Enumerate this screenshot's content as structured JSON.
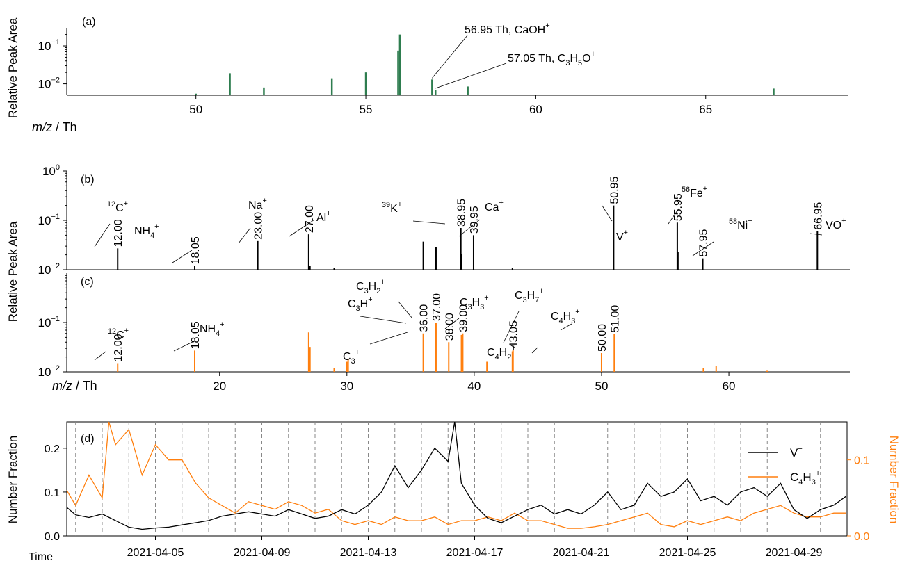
{
  "chart_data": [
    {
      "panel": "(a)",
      "type": "bar",
      "ylabel": "Relative Peak Area",
      "xlabel_var": "m/z",
      "xlabel_unit": " / Th",
      "xlim": [
        46.2,
        69.2
      ],
      "ylim": [
        0.005,
        0.3
      ],
      "yscale": "log",
      "xticks": [
        50,
        55,
        60,
        65
      ],
      "yticks": [
        {
          "base": "10",
          "exp": "−1",
          "value": 0.1
        },
        {
          "base": "10",
          "exp": "−2",
          "value": 0.01
        }
      ],
      "color": "#2e7d4f",
      "x": [
        50.0,
        51.0,
        52.0,
        54.0,
        55.0,
        55.95,
        56.0,
        56.95,
        57.05,
        58.0,
        67.0
      ],
      "values": [
        0.0055,
        0.019,
        0.008,
        0.014,
        0.02,
        0.075,
        0.2,
        0.013,
        0.007,
        0.0085,
        0.0075
      ],
      "annotations": [
        {
          "x": 56.95,
          "base": "56.95 Th, CaOH",
          "sup": "+"
        },
        {
          "x": 57.05,
          "base": "57.05 Th, C",
          "sub1": "3",
          "mid": "H",
          "sub2": "5",
          "end": "O",
          "sup": "+"
        }
      ]
    },
    {
      "panel": "(b)",
      "type": "bar",
      "ylabel": "Relative Peak Area",
      "xlim": [
        8.0,
        69.5
      ],
      "ylim": [
        0.01,
        1
      ],
      "yscale": "log",
      "yticks": [
        {
          "base": "10",
          "exp": "0",
          "value": 1
        },
        {
          "base": "10",
          "exp": "−1",
          "value": 0.1
        },
        {
          "base": "10",
          "exp": "−2",
          "value": 0.01
        }
      ],
      "color": "#000000",
      "x": [
        12.0,
        18.05,
        23.0,
        27.0,
        27.1,
        29.0,
        36.0,
        37.0,
        38.95,
        39.0,
        39.95,
        43.0,
        50.95,
        55.95,
        56.0,
        57.95,
        66.95
      ],
      "values": [
        0.027,
        0.012,
        0.038,
        0.052,
        0.012,
        0.011,
        0.037,
        0.029,
        0.07,
        0.021,
        0.05,
        0.011,
        0.2,
        0.09,
        0.023,
        0.017,
        0.06
      ],
      "peak_labels": [
        "12.00",
        "18.05",
        "23.00",
        "27.00",
        "38.95",
        "39.95",
        "50.95",
        "55.95",
        "57.95",
        "66.95"
      ],
      "ions": [
        {
          "pre": "12",
          "text": "C",
          "sup": "+"
        },
        {
          "text": "NH",
          "sub": "4",
          "sup": "+"
        },
        {
          "text": "Na",
          "sup": "+"
        },
        {
          "text": "Al",
          "sup": "+"
        },
        {
          "pre": "39",
          "text": "K",
          "sup": "+"
        },
        {
          "text": "Ca",
          "sup": "+"
        },
        {
          "text": "V",
          "sup": "+"
        },
        {
          "pre": "56",
          "text": "Fe",
          "sup": "+"
        },
        {
          "pre": "58",
          "text": "Ni",
          "sup": "+"
        },
        {
          "text": "VO",
          "sup": "+"
        }
      ]
    },
    {
      "panel": "(c)",
      "type": "bar",
      "ylabel": "Relative Peak Area",
      "xlabel_var": "m/z",
      "xlabel_unit": " / Th",
      "xlim": [
        8.0,
        69.5
      ],
      "ylim": [
        0.01,
        1
      ],
      "yscale": "log",
      "xticks": [
        20,
        30,
        40,
        50,
        60
      ],
      "yticks": [
        {
          "base": "10",
          "exp": "−1",
          "value": 0.1
        },
        {
          "base": "10",
          "exp": "−2",
          "value": 0.01
        }
      ],
      "color": "#ff7f0e",
      "x": [
        12.0,
        18.05,
        27.0,
        27.1,
        29.0,
        30.0,
        30.1,
        36.0,
        37.0,
        38.0,
        39.0,
        39.1,
        41.0,
        43.0,
        43.05,
        50.0,
        51.0,
        58.0,
        59.0,
        63.0
      ],
      "values": [
        0.015,
        0.027,
        0.063,
        0.032,
        0.012,
        0.016,
        0.018,
        0.06,
        0.1,
        0.04,
        0.056,
        0.06,
        0.016,
        0.026,
        0.028,
        0.024,
        0.058,
        0.012,
        0.013,
        0.0105
      ],
      "peak_labels": [
        "12.00",
        "18.05",
        "36.00",
        "37.00",
        "38.00",
        "39.00",
        "43.05",
        "50.00",
        "51.00"
      ],
      "ions": [
        {
          "pre": "12",
          "text": "C",
          "sup": "+"
        },
        {
          "text": "NH",
          "sub": "4",
          "sup": "+"
        },
        {
          "text": "C",
          "sub": "3",
          "sup": "+"
        },
        {
          "text": "C",
          "sub": "3",
          "sup": "+",
          "tail": "H"
        },
        {
          "text": "C",
          "sub": "3",
          "text2": "H",
          "sub2": "2",
          "sup": "+"
        },
        {
          "text": "C",
          "sub": "3",
          "text2": "H",
          "sub2": "3",
          "sup": "+"
        },
        {
          "text": "C",
          "sub": "3",
          "text2": "H",
          "sub2": "7",
          "sup": "+"
        },
        {
          "text": "C",
          "sub": "4",
          "text2": "H",
          "sub2": "2",
          "sup": "+"
        },
        {
          "text": "C",
          "sub": "4",
          "text2": "H",
          "sub2": "3",
          "sup": "+"
        }
      ]
    },
    {
      "panel": "(d)",
      "type": "line",
      "xlabel": "Time",
      "ylabel": "Number Fraction",
      "ylabel_right": "Number Fraction",
      "xlim": [
        "2021-04-02",
        "2021-05-01"
      ],
      "ylim": [
        0,
        0.26
      ],
      "ylim_right": [
        0,
        0.15
      ],
      "yticks": [
        "0.0",
        "0.1",
        "0.2"
      ],
      "yticks_right": [
        "0.0",
        "0.1"
      ],
      "xticks": [
        "2021-04-05",
        "2021-04-09",
        "2021-04-13",
        "2021-04-17",
        "2021-04-21",
        "2021-04-25",
        "2021-04-29"
      ],
      "day_lines": [
        "2021-04-02",
        "2021-04-03",
        "2021-04-04",
        "2021-04-05",
        "2021-04-06",
        "2021-04-07",
        "2021-04-08",
        "2021-04-09",
        "2021-04-10",
        "2021-04-11",
        "2021-04-12",
        "2021-04-13",
        "2021-04-14",
        "2021-04-15",
        "2021-04-16",
        "2021-04-17",
        "2021-04-18",
        "2021-04-19",
        "2021-04-20",
        "2021-04-21",
        "2021-04-22",
        "2021-04-23",
        "2021-04-24",
        "2021-04-25",
        "2021-04-26",
        "2021-04-27",
        "2021-04-28",
        "2021-04-29",
        "2021-04-30"
      ],
      "series": [
        {
          "name": "V",
          "name_sup": "+",
          "axis": "left",
          "color": "#000000",
          "x": [
            "2021-04-01T16:00",
            "2021-04-02T00:00",
            "2021-04-02T12:00",
            "2021-04-03T00:00",
            "2021-04-03T12:00",
            "2021-04-04T00:00",
            "2021-04-04T12:00",
            "2021-04-05T00:00",
            "2021-04-05T12:00",
            "2021-04-06T00:00",
            "2021-04-06T12:00",
            "2021-04-07T00:00",
            "2021-04-07T12:00",
            "2021-04-08T00:00",
            "2021-04-08T12:00",
            "2021-04-09T00:00",
            "2021-04-09T12:00",
            "2021-04-10T00:00",
            "2021-04-10T12:00",
            "2021-04-11T00:00",
            "2021-04-11T12:00",
            "2021-04-12T00:00",
            "2021-04-12T12:00",
            "2021-04-13T00:00",
            "2021-04-13T12:00",
            "2021-04-14T00:00",
            "2021-04-14T12:00",
            "2021-04-15T00:00",
            "2021-04-15T12:00",
            "2021-04-16T00:00",
            "2021-04-16T06:00",
            "2021-04-16T12:00",
            "2021-04-17T00:00",
            "2021-04-17T12:00",
            "2021-04-18T00:00",
            "2021-04-18T12:00",
            "2021-04-19T00:00",
            "2021-04-19T12:00",
            "2021-04-20T00:00",
            "2021-04-20T12:00",
            "2021-04-21T00:00",
            "2021-04-21T12:00",
            "2021-04-22T00:00",
            "2021-04-22T12:00",
            "2021-04-23T00:00",
            "2021-04-23T12:00",
            "2021-04-24T00:00",
            "2021-04-24T12:00",
            "2021-04-25T00:00",
            "2021-04-25T12:00",
            "2021-04-26T00:00",
            "2021-04-26T12:00",
            "2021-04-27T00:00",
            "2021-04-27T12:00",
            "2021-04-28T00:00",
            "2021-04-28T12:00",
            "2021-04-29T00:00",
            "2021-04-29T12:00",
            "2021-04-30T00:00",
            "2021-04-30T12:00",
            "2021-04-30T23:00"
          ],
          "values": [
            0.065,
            0.048,
            0.042,
            0.05,
            0.035,
            0.02,
            0.015,
            0.018,
            0.02,
            0.025,
            0.03,
            0.035,
            0.045,
            0.05,
            0.055,
            0.05,
            0.045,
            0.06,
            0.05,
            0.04,
            0.045,
            0.06,
            0.05,
            0.07,
            0.1,
            0.16,
            0.11,
            0.15,
            0.2,
            0.17,
            0.26,
            0.12,
            0.07,
            0.04,
            0.03,
            0.045,
            0.06,
            0.07,
            0.05,
            0.06,
            0.05,
            0.07,
            0.1,
            0.06,
            0.07,
            0.12,
            0.09,
            0.1,
            0.13,
            0.08,
            0.09,
            0.07,
            0.1,
            0.11,
            0.09,
            0.12,
            0.06,
            0.04,
            0.06,
            0.07,
            0.09
          ]
        },
        {
          "name": "C",
          "name_sub": "4",
          "name_mid": "H",
          "name_sub2": "3",
          "name_sup": "+",
          "axis": "right",
          "color": "#ff7f0e",
          "x": [
            "2021-04-01T16:00",
            "2021-04-02T00:00",
            "2021-04-02T12:00",
            "2021-04-03T00:00",
            "2021-04-03T06:00",
            "2021-04-03T12:00",
            "2021-04-04T00:00",
            "2021-04-04T12:00",
            "2021-04-05T00:00",
            "2021-04-05T12:00",
            "2021-04-06T00:00",
            "2021-04-06T12:00",
            "2021-04-07T00:00",
            "2021-04-07T12:00",
            "2021-04-08T00:00",
            "2021-04-08T12:00",
            "2021-04-09T00:00",
            "2021-04-09T12:00",
            "2021-04-10T00:00",
            "2021-04-10T12:00",
            "2021-04-11T00:00",
            "2021-04-11T12:00",
            "2021-04-12T00:00",
            "2021-04-12T12:00",
            "2021-04-13T00:00",
            "2021-04-13T12:00",
            "2021-04-14T00:00",
            "2021-04-14T12:00",
            "2021-04-15T00:00",
            "2021-04-15T12:00",
            "2021-04-16T00:00",
            "2021-04-16T12:00",
            "2021-04-17T00:00",
            "2021-04-17T12:00",
            "2021-04-18T00:00",
            "2021-04-18T12:00",
            "2021-04-19T00:00",
            "2021-04-19T12:00",
            "2021-04-20T00:00",
            "2021-04-20T12:00",
            "2021-04-21T00:00",
            "2021-04-21T12:00",
            "2021-04-22T00:00",
            "2021-04-22T12:00",
            "2021-04-23T00:00",
            "2021-04-23T12:00",
            "2021-04-24T00:00",
            "2021-04-24T12:00",
            "2021-04-25T00:00",
            "2021-04-25T12:00",
            "2021-04-26T00:00",
            "2021-04-26T12:00",
            "2021-04-27T00:00",
            "2021-04-27T12:00",
            "2021-04-28T00:00",
            "2021-04-28T12:00",
            "2021-04-29T00:00",
            "2021-04-29T12:00",
            "2021-04-30T00:00",
            "2021-04-30T12:00",
            "2021-04-30T23:00"
          ],
          "values": [
            0.06,
            0.04,
            0.08,
            0.05,
            0.15,
            0.12,
            0.14,
            0.08,
            0.12,
            0.1,
            0.1,
            0.07,
            0.05,
            0.04,
            0.03,
            0.045,
            0.04,
            0.035,
            0.045,
            0.04,
            0.03,
            0.035,
            0.02,
            0.015,
            0.02,
            0.015,
            0.025,
            0.02,
            0.02,
            0.025,
            0.015,
            0.02,
            0.02,
            0.025,
            0.02,
            0.03,
            0.02,
            0.02,
            0.015,
            0.01,
            0.01,
            0.012,
            0.015,
            0.02,
            0.025,
            0.03,
            0.015,
            0.012,
            0.02,
            0.015,
            0.02,
            0.025,
            0.02,
            0.03,
            0.035,
            0.04,
            0.03,
            0.025,
            0.025,
            0.03,
            0.03
          ]
        }
      ]
    }
  ]
}
